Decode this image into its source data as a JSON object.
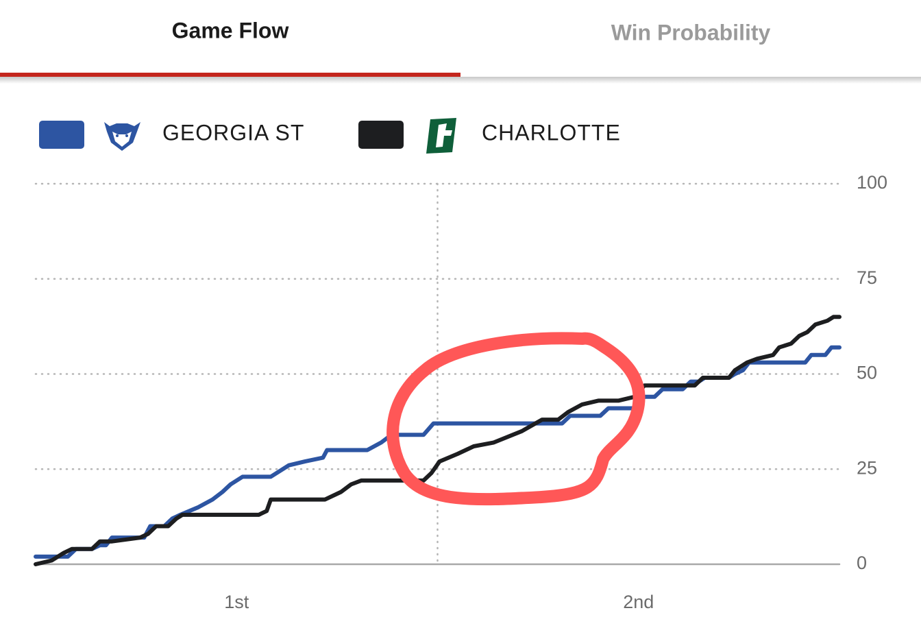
{
  "tabs": [
    "Game Flow",
    "Win Probability"
  ],
  "chart_data": {
    "type": "line",
    "periods": [
      "1st",
      "2nd"
    ],
    "xlim": [
      0,
      40
    ],
    "ylim": [
      0,
      100
    ],
    "yticks": [
      0,
      25,
      50,
      75,
      100
    ],
    "grid": true,
    "series": [
      {
        "name": "GEORGIA ST",
        "color": "#2d55a2",
        "x": [
          0,
          1.6,
          2,
          2.8,
          3.2,
          3.5,
          3.8,
          5.4,
          5.7,
          6.4,
          6.8,
          7.2,
          8.1,
          8.8,
          9.3,
          9.7,
          10.3,
          11.7,
          12.6,
          13.4,
          14.3,
          14.5,
          16.5,
          17.2,
          17.7,
          19.3,
          19.8,
          26.2,
          26.6,
          28.1,
          28.5,
          29.8,
          30.3,
          30.8,
          31.2,
          32.2,
          32.6,
          33,
          33.3,
          34.5,
          34.8,
          35.2,
          35.5,
          38.3,
          38.6,
          39.3,
          39.6,
          40
        ],
        "values": [
          2,
          2,
          4,
          4,
          5,
          5,
          7,
          7,
          10,
          10,
          12,
          13,
          15,
          17,
          19,
          21,
          23,
          23,
          26,
          27,
          28,
          30,
          30,
          32,
          34,
          34,
          37,
          37,
          39,
          39,
          41,
          41,
          44,
          44,
          46,
          46,
          48,
          48,
          49,
          49,
          50,
          51,
          53,
          53,
          55,
          55,
          57,
          57
        ]
      },
      {
        "name": "CHARLOTTE",
        "color": "#1d1e20",
        "x": [
          0,
          0.8,
          1.4,
          1.8,
          2.8,
          3.2,
          3.8,
          5.2,
          5.6,
          6,
          6.6,
          7,
          7.3,
          11.1,
          11.5,
          11.7,
          14.4,
          15.2,
          15.7,
          16.2,
          19.3,
          19.7,
          20.1,
          21,
          21.8,
          22.8,
          24.2,
          25.2,
          26,
          26.5,
          27.2,
          28,
          29,
          29.8,
          30.3,
          32.8,
          33.2,
          34.5,
          34.8,
          35.4,
          35.9,
          36.7,
          37,
          37.6,
          38,
          38.4,
          38.8,
          39.4,
          39.7,
          40
        ],
        "values": [
          0,
          1,
          3,
          4,
          4,
          6,
          6,
          7,
          8,
          10,
          10,
          12,
          13,
          13,
          14,
          17,
          17,
          19,
          21,
          22,
          22,
          24,
          27,
          29,
          31,
          32,
          35,
          38,
          38,
          40,
          42,
          43,
          43,
          44,
          47,
          47,
          49,
          49,
          51,
          53,
          54,
          55,
          57,
          58,
          60,
          61,
          63,
          64,
          65,
          65
        ]
      }
    ]
  }
}
